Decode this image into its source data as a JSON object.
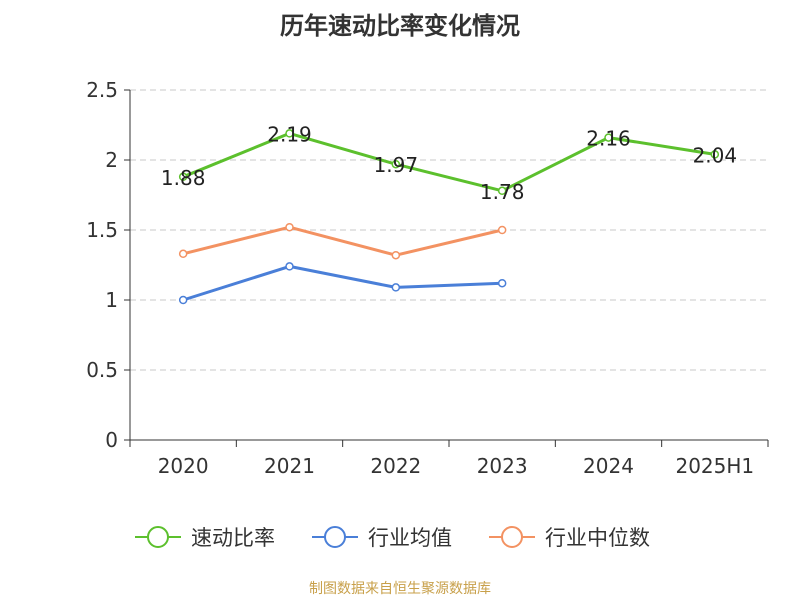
{
  "chart_data": {
    "type": "line",
    "title": "历年速动比率变化情况",
    "categories": [
      "2020",
      "2021",
      "2022",
      "2023",
      "2024",
      "2025H1"
    ],
    "ylim": [
      0,
      2.5
    ],
    "yticks": [
      "0",
      "0.5",
      "1",
      "1.5",
      "2",
      "2.5"
    ],
    "grid": true,
    "legend_position": "bottom",
    "series": [
      {
        "name": "速动比率",
        "color": "#5cc02d",
        "values": [
          1.88,
          2.19,
          1.97,
          1.78,
          2.16,
          2.04
        ],
        "labels": [
          "1.88",
          "2.19",
          "1.97",
          "1.78",
          "2.16",
          "2.04"
        ]
      },
      {
        "name": "行业均值",
        "color": "#4a7fd8",
        "values": [
          1.0,
          1.24,
          1.09,
          1.12,
          null,
          null
        ]
      },
      {
        "name": "行业中位数",
        "color": "#f39262",
        "values": [
          1.33,
          1.52,
          1.32,
          1.5,
          null,
          null
        ]
      }
    ]
  },
  "source": "制图数据来自恒生聚源数据库"
}
